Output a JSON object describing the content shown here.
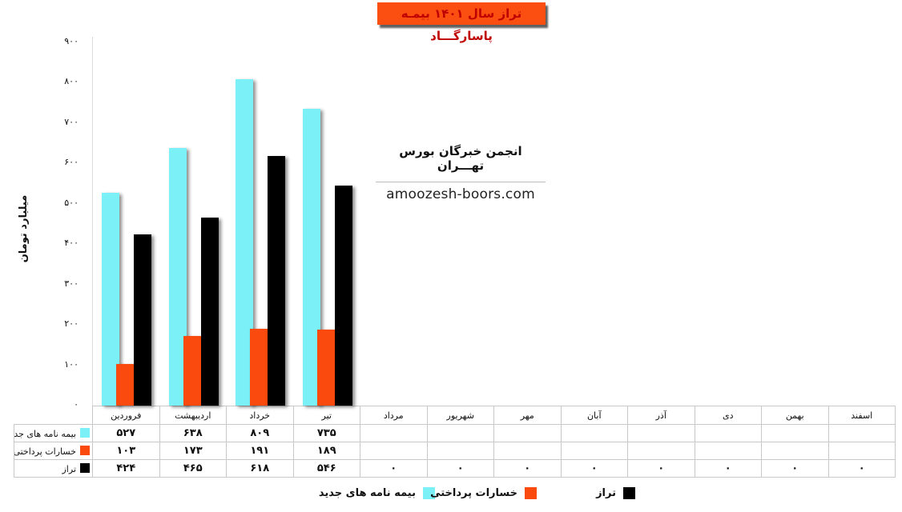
{
  "title": "تراز سال ۱۴۰۱ بیمـه پاسارگـــاد",
  "title_colors": {
    "background": "#FA4F10",
    "text": "#C00000"
  },
  "annotation": {
    "org": "انجمن خبرگان بورس تهـــران",
    "website": "amoozesh-boors.com"
  },
  "y_axis": {
    "title": "میلیارد تومان",
    "tick_labels": [
      "۹۰۰",
      "۸۰۰",
      "۷۰۰",
      "۶۰۰",
      "۵۰۰",
      "۴۰۰",
      "۳۰۰",
      "۲۰۰",
      "۱۰۰",
      "۰"
    ]
  },
  "months": [
    "فروردین",
    "اردیبهشت",
    "خرداد",
    "تیر",
    "مرداد",
    "شهریور",
    "مهر",
    "آبان",
    "آذر",
    "دی",
    "بهمن",
    "اسفند"
  ],
  "chart_data": {
    "type": "bar",
    "categories": [
      "فروردین",
      "اردیبهشت",
      "خرداد",
      "تیر",
      "مرداد",
      "شهریور",
      "مهر",
      "آبان",
      "آذر",
      "دی",
      "بهمن",
      "اسفند"
    ],
    "series": [
      {
        "key": "new-policies",
        "name": "بیمه نامه های جدید",
        "color": "#7BF1F7",
        "values": [
          527,
          638,
          809,
          735,
          null,
          null,
          null,
          null,
          null,
          null,
          null,
          null
        ],
        "display": [
          "۵۲۷",
          "۶۳۸",
          "۸۰۹",
          "۷۳۵",
          "",
          "",
          "",
          "",
          "",
          "",
          "",
          ""
        ]
      },
      {
        "key": "paid-losses",
        "name": "خسارات پرداختی",
        "color": "#FB4A0E",
        "values": [
          103,
          173,
          191,
          189,
          null,
          null,
          null,
          null,
          null,
          null,
          null,
          null
        ],
        "display": [
          "۱۰۳",
          "۱۷۳",
          "۱۹۱",
          "۱۸۹",
          "",
          "",
          "",
          "",
          "",
          "",
          "",
          ""
        ]
      },
      {
        "key": "balance",
        "name": "تراز",
        "color": "#000000",
        "values": [
          424,
          465,
          618,
          546,
          0,
          0,
          0,
          0,
          0,
          0,
          0,
          0
        ],
        "display": [
          "۴۲۴",
          "۴۶۵",
          "۶۱۸",
          "۵۴۶",
          "۰",
          "۰",
          "۰",
          "۰",
          "۰",
          "۰",
          "۰",
          "۰"
        ]
      }
    ],
    "title": "تراز سال ۱۴۰۱ بیمـه پاسارگـــاد",
    "xlabel": "",
    "ylabel": "میلیارد تومان",
    "ylim": [
      0,
      900
    ],
    "tick_step": 100,
    "grid": false,
    "legend_position": "bottom",
    "data_table": true
  }
}
